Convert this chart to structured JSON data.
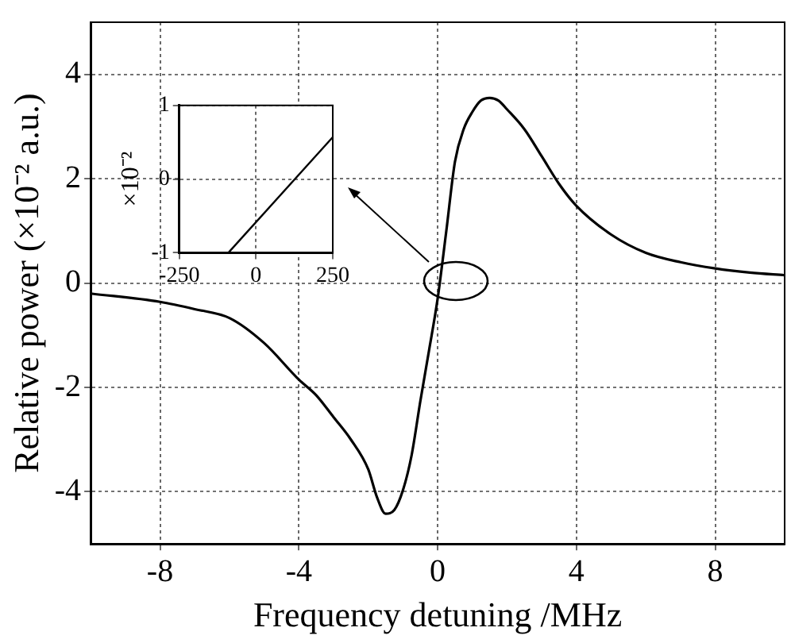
{
  "chart_data": [
    {
      "type": "line",
      "xlabel": "Frequency detuning /MHz",
      "ylabel": "Relative power (×10⁻² a.u.)",
      "x": [
        -10,
        -8,
        -7,
        -6,
        -5,
        -4,
        -3.5,
        -3,
        -2.5,
        -2,
        -1.75,
        -1.5,
        -1.25,
        -1,
        -0.75,
        -0.5,
        -0.25,
        0,
        0.25,
        0.5,
        0.75,
        1,
        1.25,
        1.5,
        1.75,
        2,
        2.5,
        3,
        3.5,
        4,
        5,
        6,
        7,
        8,
        9,
        10
      ],
      "values": [
        -0.2,
        -0.36,
        -0.5,
        -0.67,
        -1.15,
        -1.85,
        -2.15,
        -2.57,
        -3.0,
        -3.57,
        -4.1,
        -4.42,
        -4.35,
        -3.97,
        -3.3,
        -2.27,
        -1.3,
        -0.3,
        1.0,
        2.33,
        2.95,
        3.28,
        3.5,
        3.55,
        3.5,
        3.33,
        2.95,
        2.43,
        1.9,
        1.48,
        0.93,
        0.58,
        0.4,
        0.28,
        0.2,
        0.15
      ],
      "color": "#000000",
      "xlim": [
        -10,
        10
      ],
      "ylim": [
        -5,
        5
      ],
      "xticks": [
        -8,
        -4,
        0,
        4,
        8
      ],
      "yticks": [
        -4,
        -2,
        0,
        2,
        4
      ],
      "grid": true,
      "marker": "none",
      "line_style": "solid"
    },
    {
      "type": "line",
      "ylabel": "×10⁻²",
      "x": [
        -90,
        250
      ],
      "values": [
        -1,
        0.57
      ],
      "color": "#000000",
      "xlim": [
        -250,
        250
      ],
      "ylim": [
        -1,
        1
      ],
      "xticks": [
        -250,
        0,
        250
      ],
      "yticks": [
        -1,
        0,
        1
      ],
      "grid": true,
      "marker": "none",
      "line_style": "solid"
    }
  ]
}
